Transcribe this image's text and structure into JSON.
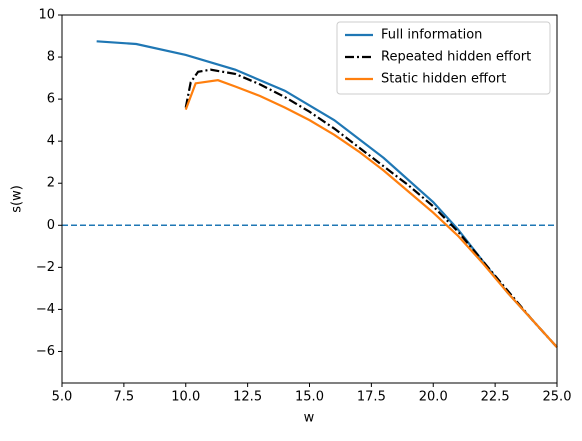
{
  "chart_data": {
    "type": "line",
    "xlabel": "w",
    "ylabel": "s(w)",
    "xlim": [
      5,
      25
    ],
    "ylim": [
      -7.5,
      10
    ],
    "xticks": [
      {
        "value": 5,
        "label": "5.0"
      },
      {
        "value": 7.5,
        "label": "7.5"
      },
      {
        "value": 10,
        "label": "10.0"
      },
      {
        "value": 12.5,
        "label": "12.5"
      },
      {
        "value": 15,
        "label": "15.0"
      },
      {
        "value": 17.5,
        "label": "17.5"
      },
      {
        "value": 20,
        "label": "20.0"
      },
      {
        "value": 22.5,
        "label": "22.5"
      },
      {
        "value": 25,
        "label": "25.0"
      }
    ],
    "yticks": [
      {
        "value": -6,
        "label": "−6"
      },
      {
        "value": -4,
        "label": "−4"
      },
      {
        "value": -2,
        "label": "−2"
      },
      0,
      2,
      4,
      6,
      8,
      10
    ],
    "legend": "upper right",
    "reference_line": {
      "y": 0,
      "color": "#1f77b4",
      "style": "dashed"
    },
    "series": [
      {
        "name": "Full information",
        "color": "#1f77b4",
        "style": "solid",
        "x": [
          6.4,
          8,
          10,
          12,
          14,
          16,
          18,
          20,
          21,
          22,
          23,
          24,
          25
        ],
        "values": [
          8.75,
          8.62,
          8.1,
          7.4,
          6.4,
          5.0,
          3.2,
          1.1,
          -0.2,
          -1.7,
          -3.2,
          -4.5,
          -5.8
        ]
      },
      {
        "name": "Repeated hidden effort",
        "color": "#000000",
        "style": "dashdot",
        "x": [
          10,
          10.2,
          10.5,
          11,
          12,
          13,
          14,
          15,
          16,
          17,
          18,
          19,
          20,
          21,
          22,
          23,
          24,
          25
        ],
        "values": [
          5.6,
          6.8,
          7.3,
          7.4,
          7.2,
          6.7,
          6.1,
          5.4,
          4.6,
          3.7,
          2.8,
          1.9,
          0.9,
          -0.3,
          -1.7,
          -3.1,
          -4.5,
          -5.8
        ]
      },
      {
        "name": "Static hidden effort",
        "color": "#ff7f0e",
        "style": "solid",
        "x": [
          10,
          10.4,
          11.3,
          12,
          13,
          14,
          15,
          16,
          17,
          18,
          19,
          20,
          21,
          22,
          23,
          24,
          25
        ],
        "values": [
          5.5,
          6.75,
          6.9,
          6.6,
          6.15,
          5.6,
          5.0,
          4.3,
          3.5,
          2.6,
          1.6,
          0.6,
          -0.5,
          -1.8,
          -3.2,
          -4.5,
          -5.8
        ]
      }
    ]
  }
}
